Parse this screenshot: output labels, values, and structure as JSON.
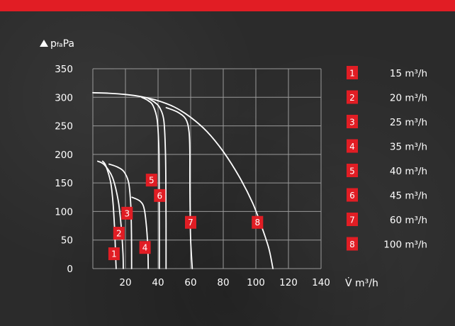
{
  "chart_data": {
    "type": "line",
    "title": "",
    "ylabel": "p_fa Pa",
    "ylabel_main": "p",
    "ylabel_sub": "fa",
    "ylabel_unit": "Pa",
    "xlabel": "V̇ m³/h",
    "xlim": [
      0,
      140
    ],
    "ylim": [
      0,
      350
    ],
    "x_ticks": [
      "20",
      "40",
      "60",
      "80",
      "100",
      "120",
      "140"
    ],
    "y_ticks": [
      "0",
      "50",
      "100",
      "150",
      "200",
      "250",
      "300",
      "350"
    ],
    "grid": true,
    "series_color": "#ffffff",
    "badge_color": "#e11d24",
    "series": [
      {
        "name": "1",
        "label": "15 m³/h",
        "badge_at": [
          13,
          26
        ],
        "points": [
          [
            6,
            188
          ],
          [
            8,
            180
          ],
          [
            11,
            150
          ],
          [
            12.5,
            110
          ],
          [
            13.5,
            60
          ],
          [
            14,
            20
          ],
          [
            14.3,
            0
          ]
        ]
      },
      {
        "name": "2",
        "label": "20 m³/h",
        "badge_at": [
          16,
          62
        ],
        "points": [
          [
            3,
            188
          ],
          [
            7,
            182
          ],
          [
            12,
            160
          ],
          [
            15.5,
            120
          ],
          [
            17.5,
            70
          ],
          [
            18.5,
            25
          ],
          [
            18.7,
            0
          ]
        ]
      },
      {
        "name": "3",
        "label": "25 m³/h",
        "badge_at": [
          21,
          97
        ],
        "points": [
          [
            10,
            183
          ],
          [
            15,
            178
          ],
          [
            19,
            170
          ],
          [
            22,
            150
          ],
          [
            23.3,
            110
          ],
          [
            23.7,
            60
          ],
          [
            23.8,
            0
          ]
        ]
      },
      {
        "name": "4",
        "label": "35 m³/h",
        "badge_at": [
          32,
          37
        ],
        "points": [
          [
            24,
            125
          ],
          [
            29,
            118
          ],
          [
            31.5,
            105
          ],
          [
            33,
            70
          ],
          [
            33.8,
            30
          ],
          [
            34,
            0
          ]
        ]
      },
      {
        "name": "5",
        "label": "40 m³/h",
        "badge_at": [
          36,
          155
        ],
        "points": [
          [
            30,
            300
          ],
          [
            34,
            294
          ],
          [
            37,
            285
          ],
          [
            39.5,
            260
          ],
          [
            40.5,
            210
          ],
          [
            40.7,
            150
          ],
          [
            40.8,
            80
          ],
          [
            40.8,
            0
          ]
        ]
      },
      {
        "name": "6",
        "label": "45 m³/h",
        "badge_at": [
          41,
          128
        ],
        "points": [
          [
            34,
            298
          ],
          [
            38,
            291
          ],
          [
            41,
            282
          ],
          [
            43.5,
            260
          ],
          [
            44.5,
            210
          ],
          [
            44.8,
            150
          ],
          [
            44.9,
            80
          ],
          [
            44.9,
            0
          ]
        ]
      },
      {
        "name": "7",
        "label": "60 m³/h",
        "badge_at": [
          60,
          81
        ],
        "points": [
          [
            45,
            282
          ],
          [
            52,
            274
          ],
          [
            57,
            262
          ],
          [
            59,
            240
          ],
          [
            59.5,
            200
          ],
          [
            59.5,
            150
          ],
          [
            59.7,
            100
          ],
          [
            60,
            50
          ],
          [
            61,
            0
          ]
        ]
      },
      {
        "name": "8",
        "label": "100 m³/h",
        "badge_at": [
          101,
          81
        ],
        "points": [
          [
            0,
            308
          ],
          [
            10,
            307
          ],
          [
            20,
            305
          ],
          [
            30,
            301
          ],
          [
            40,
            294
          ],
          [
            50,
            283
          ],
          [
            60,
            265
          ],
          [
            70,
            240
          ],
          [
            80,
            205
          ],
          [
            90,
            160
          ],
          [
            98,
            115
          ],
          [
            104,
            70
          ],
          [
            108,
            35
          ],
          [
            110.5,
            0
          ]
        ]
      }
    ]
  }
}
